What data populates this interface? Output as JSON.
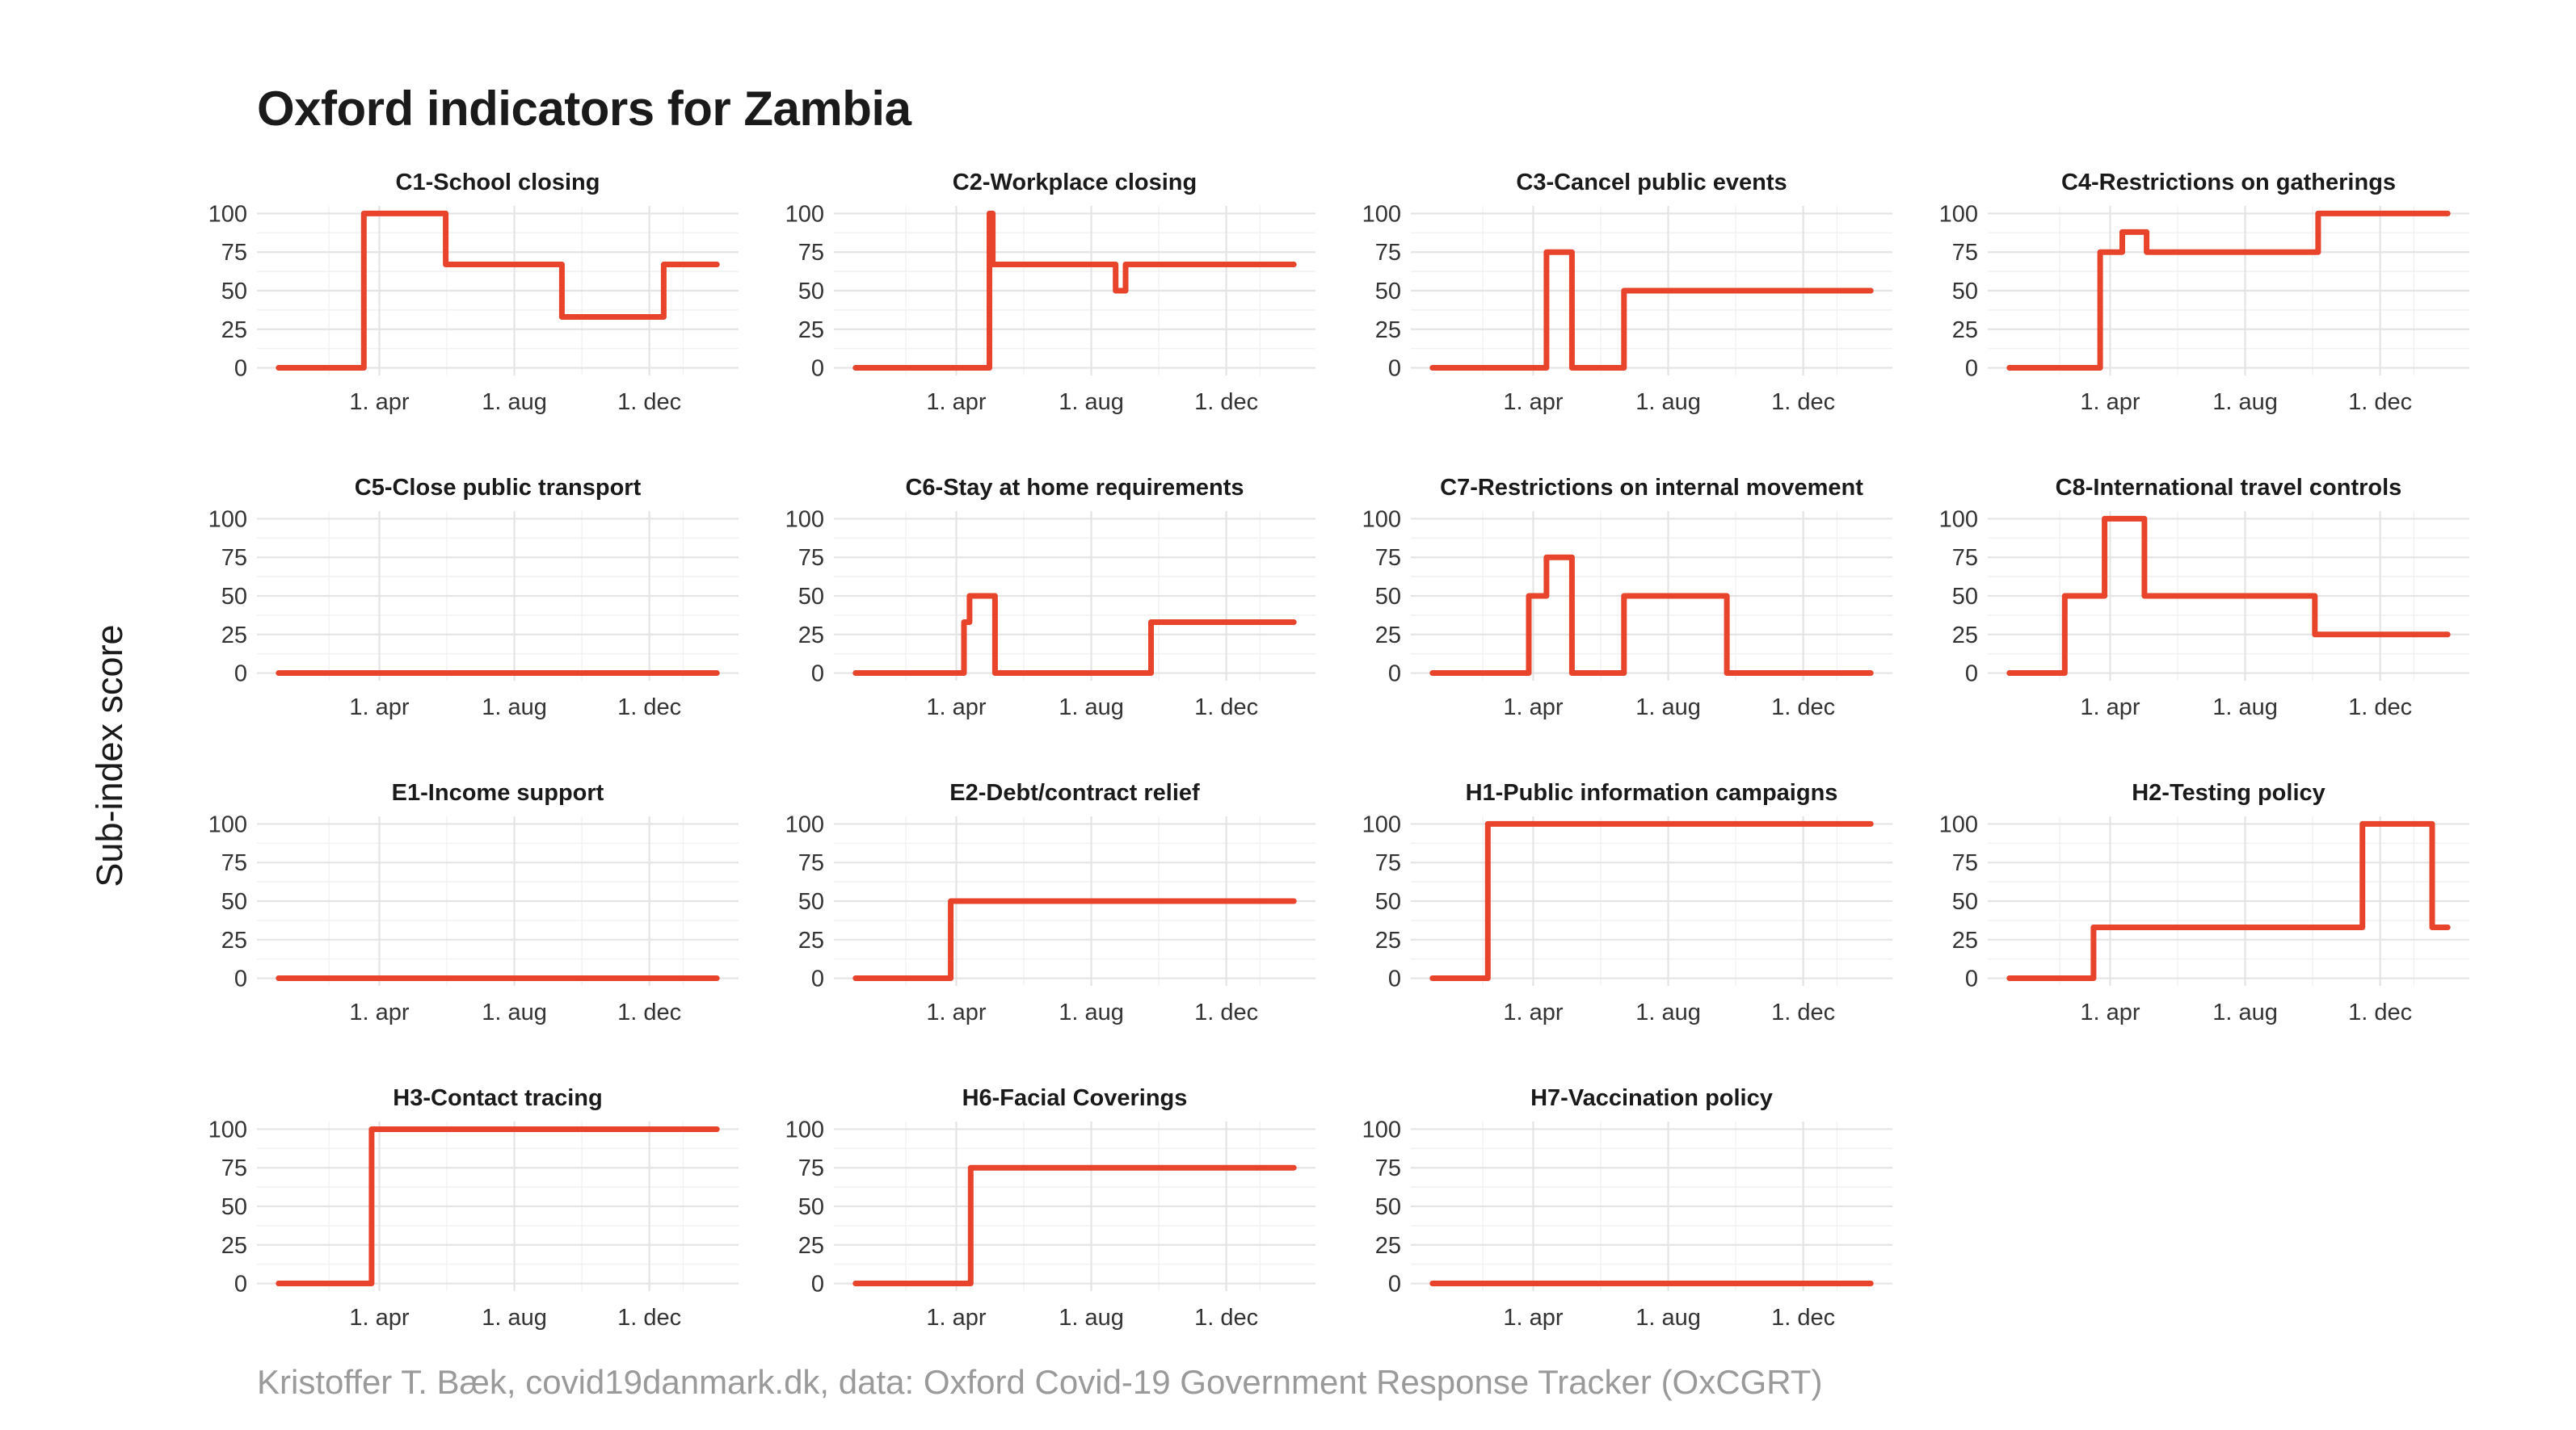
{
  "title": "Oxford indicators for Zambia",
  "y_axis_title": "Sub-index score",
  "caption": "Kristoffer T. Bæk, covid19danmark.dk, data: Oxford Covid-19 Government Response Tracker (OxCGRT)",
  "colors": {
    "line": "#e8432b",
    "grid": "#e4e4e4",
    "text": "#1a1a1a",
    "caption": "#9a9a9a"
  },
  "chart_data": {
    "type": "line",
    "layout": "facet-grid 4x4",
    "x_unit": "day of year 2020 (day 1 = 1 Jan 2020; 1. apr = 92, 1. aug = 214, 1. dec = 336)",
    "x_range": [
      1,
      397
    ],
    "ylim": [
      0,
      100
    ],
    "y_ticks": [
      0,
      25,
      50,
      75,
      100
    ],
    "x_ticks": [
      {
        "label": "1. apr",
        "value": 92
      },
      {
        "label": "1. aug",
        "value": 214
      },
      {
        "label": "1. dec",
        "value": 336
      }
    ],
    "ylabel": "Sub-index score",
    "panels": [
      {
        "title": "C1-School closing",
        "steps": [
          [
            1,
            0
          ],
          [
            78,
            100
          ],
          [
            152,
            67
          ],
          [
            257,
            33
          ],
          [
            349,
            67
          ],
          [
            397,
            67
          ]
        ]
      },
      {
        "title": "C2-Workplace closing",
        "steps": [
          [
            1,
            0
          ],
          [
            122,
            100
          ],
          [
            125,
            67
          ],
          [
            236,
            50
          ],
          [
            245,
            67
          ],
          [
            397,
            67
          ]
        ]
      },
      {
        "title": "C3-Cancel public events",
        "steps": [
          [
            1,
            0
          ],
          [
            104,
            75
          ],
          [
            127,
            0
          ],
          [
            174,
            50
          ],
          [
            397,
            50
          ]
        ]
      },
      {
        "title": "C4-Restrictions on gatherings",
        "steps": [
          [
            1,
            0
          ],
          [
            83,
            75
          ],
          [
            103,
            88
          ],
          [
            125,
            75
          ],
          [
            280,
            100
          ],
          [
            397,
            100
          ]
        ]
      },
      {
        "title": "C5-Close public transport",
        "steps": [
          [
            1,
            0
          ],
          [
            397,
            0
          ]
        ]
      },
      {
        "title": "C6-Stay at home requirements",
        "steps": [
          [
            1,
            0
          ],
          [
            99,
            33
          ],
          [
            104,
            50
          ],
          [
            127,
            0
          ],
          [
            268,
            33
          ],
          [
            397,
            33
          ]
        ]
      },
      {
        "title": "C7-Restrictions on internal movement",
        "steps": [
          [
            1,
            0
          ],
          [
            88,
            50
          ],
          [
            104,
            75
          ],
          [
            127,
            0
          ],
          [
            174,
            50
          ],
          [
            267,
            0
          ],
          [
            397,
            0
          ]
        ]
      },
      {
        "title": "C8-International travel controls",
        "steps": [
          [
            1,
            0
          ],
          [
            51,
            50
          ],
          [
            87,
            100
          ],
          [
            123,
            50
          ],
          [
            277,
            25
          ],
          [
            397,
            25
          ]
        ]
      },
      {
        "title": "E1-Income support",
        "steps": [
          [
            1,
            0
          ],
          [
            397,
            0
          ]
        ]
      },
      {
        "title": "E2-Debt/contract relief",
        "steps": [
          [
            1,
            0
          ],
          [
            87,
            50
          ],
          [
            397,
            50
          ]
        ]
      },
      {
        "title": "H1-Public information campaigns",
        "steps": [
          [
            1,
            0
          ],
          [
            51,
            100
          ],
          [
            397,
            100
          ]
        ]
      },
      {
        "title": "H2-Testing policy",
        "steps": [
          [
            1,
            0
          ],
          [
            77,
            33
          ],
          [
            320,
            100
          ],
          [
            383,
            33
          ],
          [
            397,
            33
          ]
        ]
      },
      {
        "title": "H3-Contact tracing",
        "steps": [
          [
            1,
            0
          ],
          [
            85,
            100
          ],
          [
            397,
            100
          ]
        ]
      },
      {
        "title": "H6-Facial Coverings",
        "steps": [
          [
            1,
            0
          ],
          [
            105,
            75
          ],
          [
            397,
            75
          ]
        ]
      },
      {
        "title": "H7-Vaccination policy",
        "steps": [
          [
            1,
            0
          ],
          [
            397,
            0
          ]
        ]
      }
    ]
  }
}
